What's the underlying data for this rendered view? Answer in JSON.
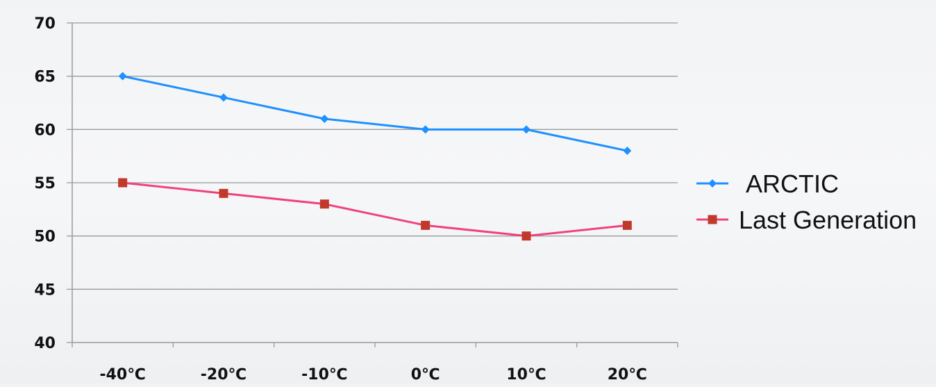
{
  "chart_data": {
    "type": "line",
    "categories": [
      "-40℃",
      "-20℃",
      "-10℃",
      "0℃",
      "10℃",
      "20℃"
    ],
    "ylim": [
      40,
      70
    ],
    "yticks": [
      40,
      45,
      50,
      55,
      60,
      65,
      70
    ],
    "grid": true,
    "legend_position": "right",
    "series": [
      {
        "name": "ARCTIC",
        "color": "#1e90ff",
        "marker": "diamond",
        "values": [
          65,
          63,
          61,
          60,
          60,
          58
        ]
      },
      {
        "name": "Last Generation",
        "color": "#f0427a",
        "marker": "square",
        "marker_color": "#c0392b",
        "values": [
          55,
          54,
          53,
          51,
          50,
          51
        ]
      }
    ]
  }
}
